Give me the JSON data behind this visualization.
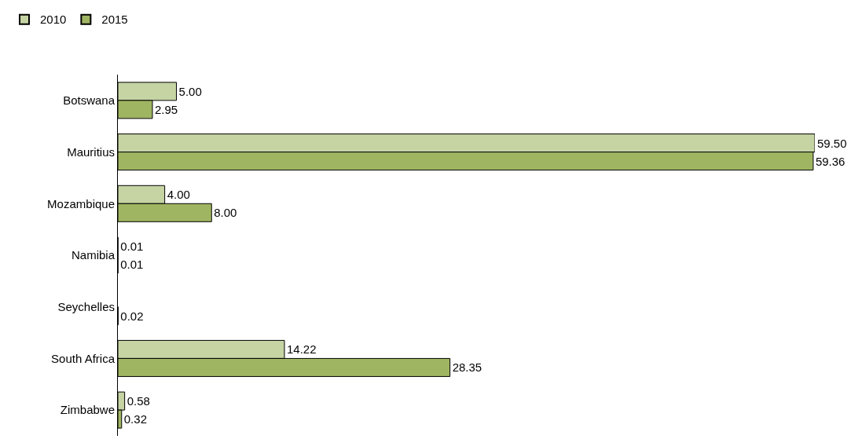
{
  "chart_data": {
    "type": "bar",
    "orientation": "horizontal",
    "legend": "top left",
    "tick_labels": "y",
    "categories": [
      "Botswana",
      "Mauritius",
      "Mozambique",
      "Namibia",
      "Seychelles",
      "South Africa",
      "Zimbabwe"
    ],
    "series": [
      {
        "name": "2010",
        "color": "#c6d4a4",
        "values": [
          5.0,
          59.5,
          4.0,
          0.01,
          null,
          14.22,
          0.58
        ],
        "value_labels": [
          "5.00",
          "59.50",
          "4.00",
          "0.01",
          null,
          "14.22",
          "0.58"
        ]
      },
      {
        "name": "2015",
        "color": "#a0b562",
        "values": [
          2.95,
          59.36,
          8.0,
          0.01,
          0.02,
          28.35,
          0.32
        ],
        "value_labels": [
          "2.95",
          "59.36",
          "8.00",
          "0.01",
          "0.02",
          "28.35",
          "0.32"
        ]
      }
    ]
  }
}
